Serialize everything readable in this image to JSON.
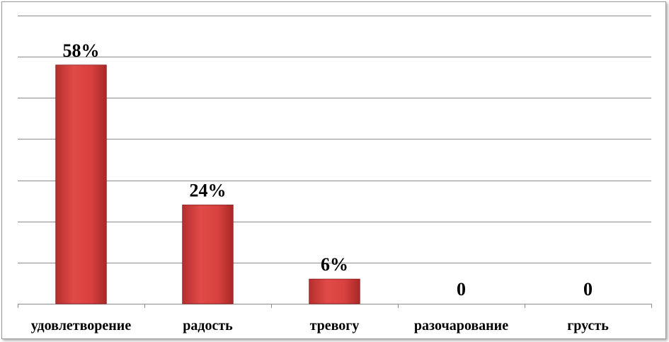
{
  "chart_data": {
    "type": "bar",
    "title": "",
    "xlabel": "",
    "ylabel": "",
    "categories": [
      "удовлетворение",
      "радость",
      "тревогу",
      "разочарование",
      "грусть"
    ],
    "values": [
      58,
      24,
      6,
      0,
      0
    ],
    "data_labels": [
      "58%",
      "24%",
      "6%",
      "0",
      "0"
    ],
    "ylim": [
      0,
      70
    ],
    "grid": true,
    "legend": "none",
    "bar_color": "#d9413f"
  }
}
